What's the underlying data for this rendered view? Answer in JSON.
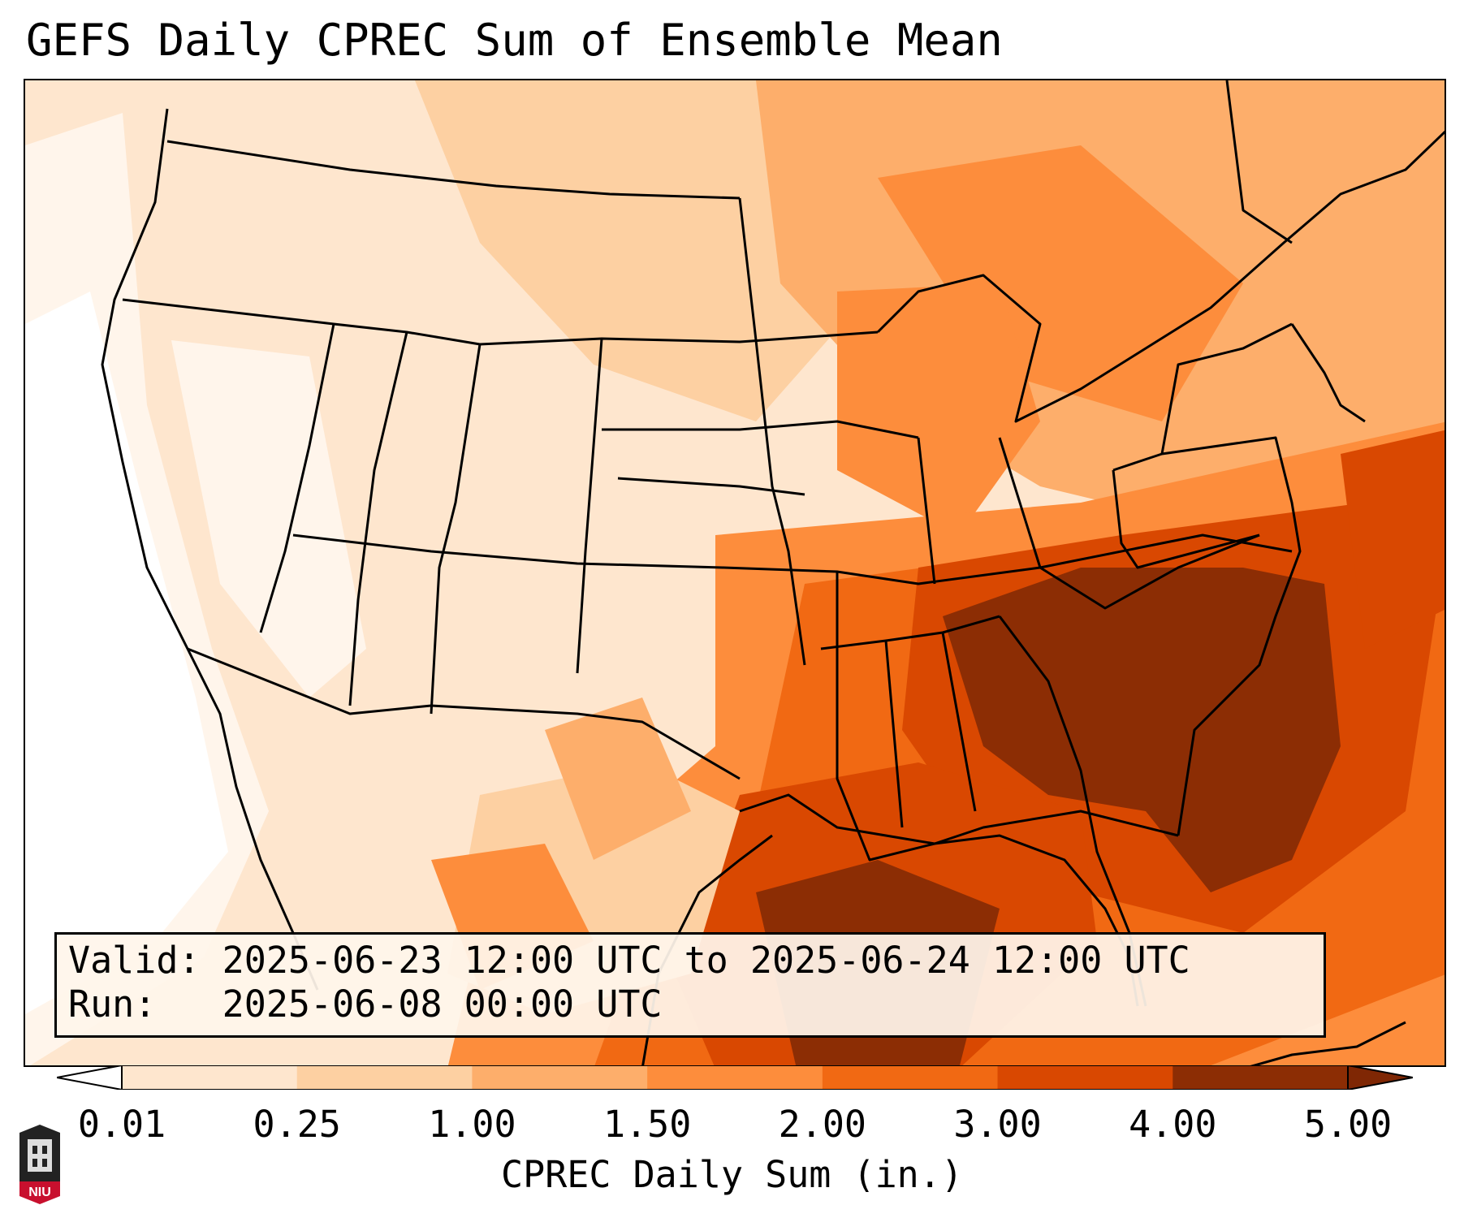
{
  "title": "GEFS Daily CPREC Sum of Ensemble Mean",
  "info": {
    "valid_label": "Valid:",
    "valid_value": "2025-06-23 12:00 UTC to 2025-06-24 12:00 UTC",
    "run_label": "Run:",
    "run_value": "2025-06-08 00:00 UTC"
  },
  "colorbar": {
    "label": "CPREC Daily Sum (in.)",
    "ticks": [
      "0.01",
      "0.25",
      "1.00",
      "1.50",
      "2.00",
      "3.00",
      "4.00",
      "5.00"
    ],
    "colors": [
      "#fff5eb",
      "#fee6ce",
      "#fdd0a2",
      "#fdae6b",
      "#fd8d3c",
      "#f16913",
      "#d94801",
      "#8c2d04"
    ],
    "under_color": "#ffffff",
    "over_color": "#7f2704"
  },
  "logo": {
    "text": "NIU",
    "color": "#c8102e"
  },
  "map": {
    "region": "Contiguous United States",
    "heaviest_precip": "Southeast US, Gulf Coast and western Atlantic",
    "driest": "Pacific coast and Great Basin"
  }
}
